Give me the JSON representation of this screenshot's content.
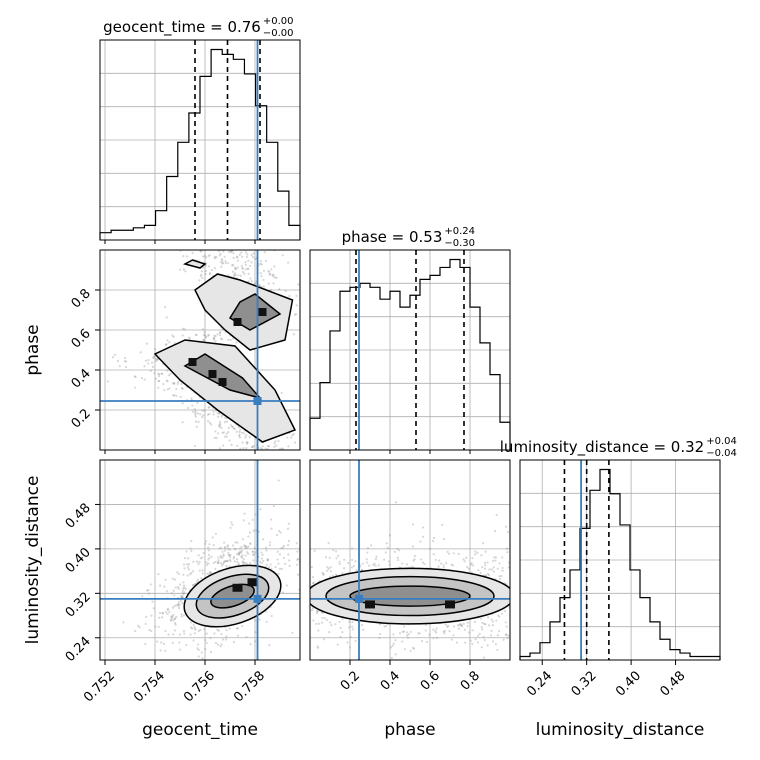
{
  "chart_data": {
    "type": "corner",
    "parameters": [
      "geocent_time",
      "phase",
      "luminosity_distance"
    ],
    "axis_labels": {
      "geocent_time": "geocent_time",
      "phase": "phase",
      "luminosity_distance": "luminosity_distance"
    },
    "titles": [
      {
        "param": "geocent_time",
        "text": "geocent_time = 0.76",
        "plus": "+0.00",
        "minus": "−0.00"
      },
      {
        "param": "phase",
        "text": "phase = 0.53",
        "plus": "+0.24",
        "minus": "−0.30"
      },
      {
        "param": "luminosity_distance",
        "text": "luminosity_distance = 0.32",
        "plus": "+0.04",
        "minus": "−0.04"
      }
    ],
    "ranges": {
      "geocent_time": [
        0.7518,
        0.7598
      ],
      "phase": [
        0.0,
        1.0
      ],
      "luminosity_distance": [
        0.2,
        0.56
      ]
    },
    "ticks": {
      "geocent_time": [
        0.752,
        0.754,
        0.756,
        0.758
      ],
      "phase": [
        0.2,
        0.4,
        0.6,
        0.8
      ],
      "luminosity_distance": [
        0.24,
        0.32,
        0.4,
        0.48
      ]
    },
    "tick_labels": {
      "geocent_time": [
        "0.752",
        "0.754",
        "0.756",
        "0.758"
      ],
      "phase": [
        "0.2",
        "0.4",
        "0.6",
        "0.8"
      ],
      "luminosity_distance": [
        "0.24",
        "0.32",
        "0.40",
        "0.48"
      ]
    },
    "injection": {
      "geocent_time": 0.7581,
      "phase": 0.245,
      "luminosity_distance": 0.31
    },
    "quantiles": {
      "geocent_time": [
        0.7556,
        0.7569,
        0.7582
      ],
      "phase": [
        0.23,
        0.53,
        0.77
      ],
      "luminosity_distance": [
        0.28,
        0.32,
        0.36
      ]
    },
    "histograms": {
      "geocent_time": [
        3,
        4,
        4,
        5,
        6,
        12,
        26,
        40,
        52,
        67,
        78,
        76,
        74,
        68,
        55,
        40,
        20,
        6
      ],
      "phase": [
        8,
        17,
        30,
        40,
        41,
        42,
        41,
        38,
        40,
        36,
        39,
        43,
        44,
        46,
        48,
        46,
        36,
        27,
        19,
        7
      ],
      "luminosity_distance": [
        1,
        2,
        5,
        11,
        18,
        26,
        38,
        49,
        55,
        48,
        39,
        26,
        18,
        11,
        6,
        3,
        2,
        1,
        1,
        1
      ]
    },
    "grid": true
  }
}
